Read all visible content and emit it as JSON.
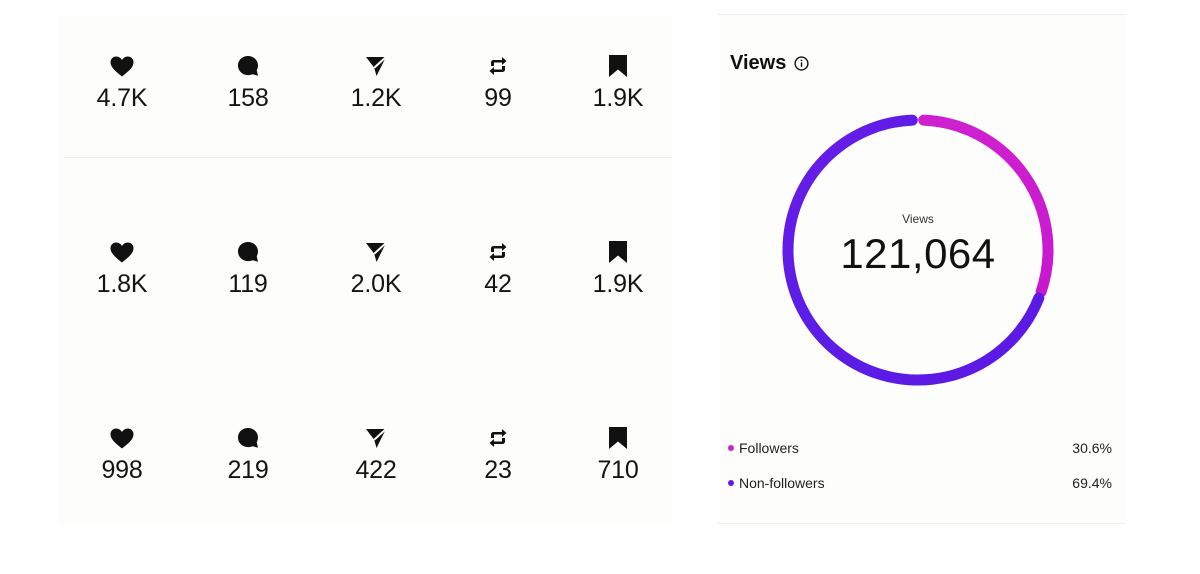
{
  "posts": [
    {
      "likes": "4.7K",
      "comments": "158",
      "shares": "1.2K",
      "reposts": "99",
      "saves": "1.9K"
    },
    {
      "likes": "1.8K",
      "comments": "119",
      "shares": "2.0K",
      "reposts": "42",
      "saves": "1.9K"
    },
    {
      "likes": "998",
      "comments": "219",
      "shares": "422",
      "reposts": "23",
      "saves": "710"
    }
  ],
  "icons": {
    "likes": "heart-icon",
    "comments": "comment-bubble-icon",
    "shares": "paper-plane-icon",
    "reposts": "repost-icon",
    "saves": "bookmark-icon"
  },
  "views_panel": {
    "title": "Views",
    "info_icon": "info-icon",
    "center_label": "Views",
    "center_value": "121,064",
    "legend": [
      {
        "label": "Followers",
        "value": "30.6%",
        "color": "#d31fc6"
      },
      {
        "label": "Non-followers",
        "value": "69.4%",
        "color": "#6419e6"
      }
    ]
  },
  "colors": {
    "followers": "#d31fc6",
    "non_followers": "#6419e6",
    "icon": "#111111"
  }
}
